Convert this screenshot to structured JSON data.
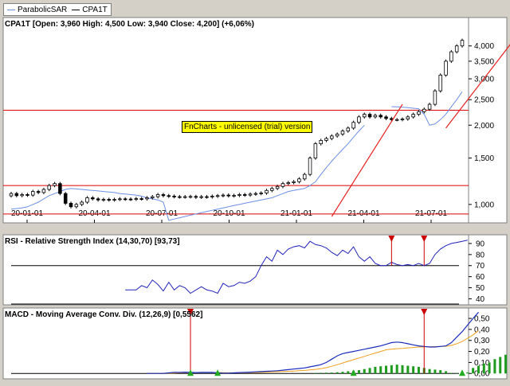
{
  "legend": [
    {
      "label": "ParabolicSAR",
      "color": "#6d8fe6"
    },
    {
      "label": "CPA1T",
      "color": "#000000"
    }
  ],
  "watermark": "FnCharts - unlicensed (trial) version",
  "colors": {
    "sar": "#6d8fe6",
    "hline": "#dd0000",
    "trend": "#e82020",
    "rsi": "#2222bb",
    "macd": "#1a2dbd",
    "signal": "#f0a020",
    "hist": "#1e9a1e",
    "arrowDown": "#cc0000",
    "arrowUp": "#22aa22",
    "candleUp": "#ffffff",
    "candleDown": "#000000"
  },
  "chart_data": [
    {
      "type": "candlestick",
      "title": "CPA1T [Open: 3,960  High: 4,500  Low: 3,940  Close: 4,200] (+6,06%)",
      "scale": "log",
      "ylim": [
        900,
        4400
      ],
      "y_ticks": [
        {
          "v": 1000,
          "label": "1,000"
        },
        {
          "v": 1500,
          "label": "1,500"
        },
        {
          "v": 2000,
          "label": "2,000"
        },
        {
          "v": 2500,
          "label": "2,500"
        },
        {
          "v": 3000,
          "label": "3,000"
        },
        {
          "v": 3500,
          "label": "3,500"
        },
        {
          "v": 4000,
          "label": "4,000"
        }
      ],
      "x_ticks": [
        "20-01-01",
        "20-04-01",
        "20-07-01",
        "20-10-01",
        "21-01-01",
        "21-04-01",
        "21-07-01"
      ],
      "horizontal_lines": [
        920,
        1180,
        2280
      ],
      "close": [
        1100,
        1080,
        1090,
        1085,
        1120,
        1110,
        1140,
        1180,
        1200,
        1100,
        1010,
        980,
        1000,
        1020,
        1060,
        1050,
        1040,
        1045,
        1040,
        1045,
        1050,
        1048,
        1046,
        1052,
        1050,
        1060,
        1070,
        1090,
        1080,
        1075,
        1070,
        1068,
        1070,
        1072,
        1065,
        1070,
        1068,
        1075,
        1080,
        1085,
        1078,
        1082,
        1090,
        1085,
        1095,
        1100,
        1105,
        1130,
        1150,
        1170,
        1200,
        1210,
        1220,
        1250,
        1300,
        1500,
        1700,
        1750,
        1780,
        1820,
        1850,
        1900,
        1950,
        2050,
        2150,
        2200,
        2150,
        2180,
        2150,
        2120,
        2100,
        2100,
        2110,
        2150,
        2200,
        2250,
        2300,
        2400,
        2700,
        3100,
        3500,
        3800,
        4000,
        4200
      ],
      "series": [
        {
          "name": "ParabolicSAR",
          "x_start_index": 0,
          "values": [
            960,
            965,
            970,
            980,
            1000,
            1020,
            1050,
            1080,
            1100,
            1120,
            1140,
            1150,
            1145,
            1140,
            1135,
            1130,
            1125,
            1120,
            1115,
            1110,
            1100,
            1095,
            1090,
            1085,
            1075,
            1060,
            1050,
            1040,
            1020,
            870,
            880,
            890,
            900,
            910,
            920,
            930,
            940,
            950,
            960,
            970,
            980,
            990,
            1000,
            1010,
            1020,
            1030,
            1040,
            1050,
            1060,
            1080,
            1100,
            1120,
            1130,
            1140,
            1150,
            1180,
            1220,
            1300,
            1380,
            1460,
            1540,
            1620,
            1700,
            1800,
            1900,
            2000,
            null,
            null,
            null,
            null,
            2350,
            2350,
            2340,
            2330,
            2320,
            2310,
            2200,
            2000,
            2020,
            2100,
            2200,
            2350,
            2500,
            2680
          ]
        }
      ],
      "trendlines": [
        {
          "from": {
            "index": 59,
            "value": 900
          },
          "to": {
            "index": 72,
            "value": 2400
          }
        },
        {
          "from": {
            "index": 80,
            "value": 1950
          },
          "to": {
            "index": 93,
            "value": 4350
          }
        }
      ]
    },
    {
      "type": "line",
      "title": "RSI - Relative Strength Index (14,30,70) [93,73]",
      "ylim": [
        36,
        95
      ],
      "y_ticks": [
        40,
        50,
        60,
        70,
        80,
        90
      ],
      "horizontal_lines": [
        30,
        70,
        93
      ],
      "series": [
        {
          "name": "RSI",
          "x_start_index": 21,
          "values": [
            48,
            48,
            48,
            52,
            50,
            57,
            53,
            47,
            55,
            48,
            52,
            50,
            45,
            48,
            51,
            48,
            47,
            45,
            54,
            51,
            52,
            55,
            54,
            56,
            60,
            70,
            78,
            74,
            84,
            80,
            85,
            87,
            88,
            86,
            92,
            89,
            88,
            86,
            82,
            79,
            84,
            81,
            87,
            78,
            74,
            78,
            72,
            70,
            70,
            73,
            71,
            70,
            71,
            70,
            72,
            70,
            72,
            80,
            85,
            88,
            90,
            91,
            92,
            93
          ]
        }
      ],
      "signals": [
        {
          "index": 70,
          "direction": "down"
        },
        {
          "index": 76,
          "direction": "down"
        }
      ]
    },
    {
      "type": "line",
      "title": "MACD - Moving Average Conv. Div. (12,26,9) [0,5562]",
      "ylim": [
        -0.02,
        0.58
      ],
      "y_ticks": [
        {
          "v": 0.0,
          "label": "0,00"
        },
        {
          "v": 0.1,
          "label": "0,10"
        },
        {
          "v": 0.2,
          "label": "0,20"
        },
        {
          "v": 0.3,
          "label": "0,30"
        },
        {
          "v": 0.4,
          "label": "0,40"
        },
        {
          "v": 0.5,
          "label": "0,50"
        }
      ],
      "series": [
        {
          "name": "MACD",
          "x_start_index": 25,
          "values": [
            0.0,
            0.0,
            0.0,
            0.0,
            0.005,
            0.01,
            0.01,
            0.012,
            0.01,
            0.008,
            0.01,
            0.01,
            0.01,
            0.005,
            0.003,
            0.003,
            0.005,
            0.008,
            0.01,
            0.012,
            0.015,
            0.017,
            0.02,
            0.022,
            0.025,
            0.03,
            0.035,
            0.04,
            0.045,
            0.05,
            0.06,
            0.07,
            0.08,
            0.1,
            0.13,
            0.16,
            0.18,
            0.19,
            0.2,
            0.21,
            0.22,
            0.23,
            0.24,
            0.25,
            0.265,
            0.28,
            0.285,
            0.28,
            0.27,
            0.26,
            0.25,
            0.245,
            0.24,
            0.24,
            0.245,
            0.25,
            0.28,
            0.33,
            0.38,
            0.44,
            0.5,
            0.556
          ]
        },
        {
          "name": "Signal",
          "x_start_index": 25,
          "values": [
            0.0,
            0.0,
            0.0,
            0.0,
            0.002,
            0.004,
            0.006,
            0.008,
            0.009,
            0.009,
            0.009,
            0.009,
            0.009,
            0.008,
            0.007,
            0.006,
            0.006,
            0.006,
            0.007,
            0.008,
            0.009,
            0.01,
            0.012,
            0.014,
            0.016,
            0.018,
            0.02,
            0.022,
            0.025,
            0.028,
            0.032,
            0.037,
            0.043,
            0.052,
            0.065,
            0.08,
            0.095,
            0.11,
            0.125,
            0.14,
            0.155,
            0.17,
            0.185,
            0.2,
            0.215,
            0.22,
            0.225,
            0.228,
            0.232,
            0.236,
            0.24,
            0.241,
            0.243,
            0.244,
            0.245,
            0.247,
            0.255,
            0.27,
            0.29,
            0.32,
            0.35,
            0.39
          ]
        },
        {
          "name": "Histogram",
          "x_start_index": 56,
          "values": [
            0.005,
            0.006,
            0.007,
            0.008,
            0.011,
            0.015,
            0.02,
            0.025,
            0.03,
            0.04,
            0.05,
            0.06,
            0.065,
            0.07,
            0.075,
            0.08,
            0.075,
            0.07,
            0.065,
            0.06,
            0.05,
            0.04,
            0.035,
            0.03,
            0.02,
            0.005,
            0.004,
            0.003,
            0.01,
            0.05,
            0.07,
            0.09,
            0.1,
            0.13,
            0.15,
            0.17
          ]
        }
      ],
      "signals": [
        {
          "index": 33,
          "direction": "down"
        },
        {
          "index": 33,
          "direction": "up"
        },
        {
          "index": 38,
          "direction": "up"
        },
        {
          "index": 63,
          "direction": "up"
        },
        {
          "index": 76,
          "direction": "down"
        },
        {
          "index": 83,
          "direction": "up"
        }
      ]
    }
  ]
}
